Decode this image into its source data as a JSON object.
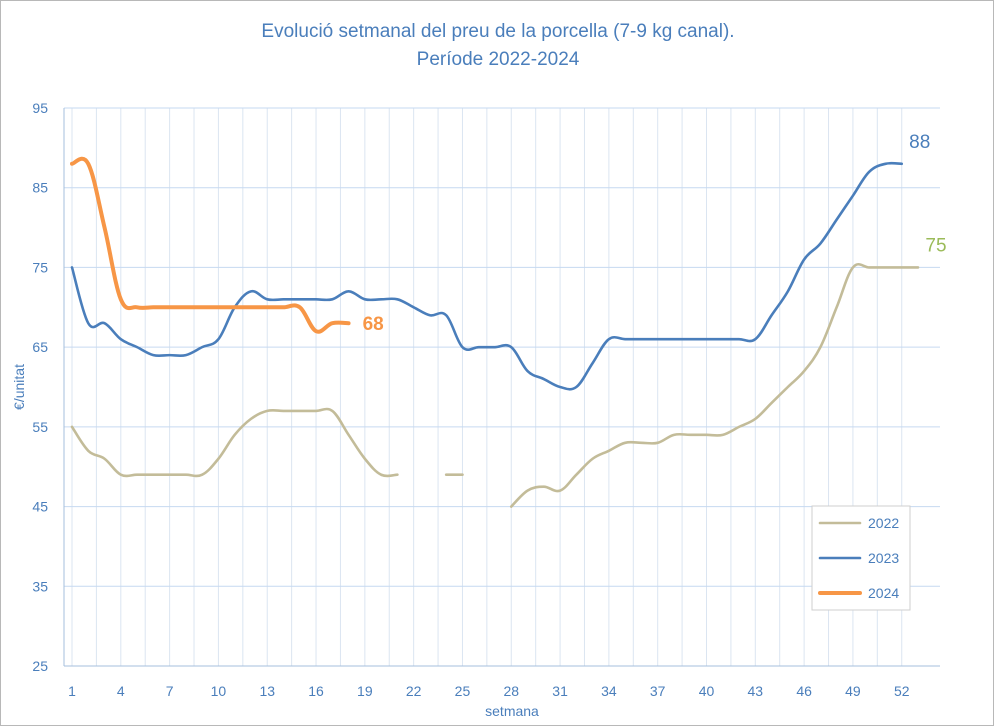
{
  "chart_data": {
    "type": "line",
    "title": "Evolució setmanal del preu de la porcella (7-9 kg canal).",
    "subtitle": "Període 2022-2024",
    "xlabel": "setmana",
    "ylabel": "€/unitat",
    "xlim": [
      1,
      53
    ],
    "ylim": [
      25,
      95
    ],
    "x_ticks": [
      1,
      4,
      7,
      10,
      13,
      16,
      19,
      22,
      25,
      28,
      31,
      34,
      37,
      40,
      43,
      46,
      49,
      52
    ],
    "y_ticks": [
      25,
      35,
      45,
      55,
      65,
      75,
      85,
      95
    ],
    "grid": true,
    "legend_position": "bottom-right",
    "series": [
      {
        "name": "2022",
        "color": "#c3bc99",
        "values": [
          [
            1,
            55
          ],
          [
            2,
            52
          ],
          [
            3,
            51
          ],
          [
            4,
            49
          ],
          [
            5,
            49
          ],
          [
            6,
            49
          ],
          [
            7,
            49
          ],
          [
            8,
            49
          ],
          [
            9,
            49
          ],
          [
            10,
            51
          ],
          [
            11,
            54
          ],
          [
            12,
            56
          ],
          [
            13,
            57
          ],
          [
            14,
            57
          ],
          [
            15,
            57
          ],
          [
            16,
            57
          ],
          [
            17,
            57
          ],
          [
            18,
            54
          ],
          [
            19,
            51
          ],
          [
            20,
            49
          ],
          [
            21,
            49
          ],
          [
            22,
            null
          ],
          [
            23,
            null
          ],
          [
            24,
            49
          ],
          [
            25,
            49
          ],
          [
            26,
            null
          ],
          [
            27,
            null
          ],
          [
            28,
            45
          ],
          [
            29,
            47
          ],
          [
            30,
            47.5
          ],
          [
            31,
            47
          ],
          [
            32,
            49
          ],
          [
            33,
            51
          ],
          [
            34,
            52
          ],
          [
            35,
            53
          ],
          [
            36,
            53
          ],
          [
            37,
            53
          ],
          [
            38,
            54
          ],
          [
            39,
            54
          ],
          [
            40,
            54
          ],
          [
            41,
            54
          ],
          [
            42,
            55
          ],
          [
            43,
            56
          ],
          [
            44,
            58
          ],
          [
            45,
            60
          ],
          [
            46,
            62
          ],
          [
            47,
            65
          ],
          [
            48,
            70
          ],
          [
            49,
            75
          ],
          [
            50,
            75
          ],
          [
            51,
            75
          ],
          [
            52,
            75
          ],
          [
            53,
            75
          ]
        ],
        "end_label": "75",
        "end_label_color": "#9bbb59"
      },
      {
        "name": "2023",
        "color": "#4a7ebb",
        "values": [
          [
            1,
            75
          ],
          [
            2,
            68
          ],
          [
            3,
            68
          ],
          [
            4,
            66
          ],
          [
            5,
            65
          ],
          [
            6,
            64
          ],
          [
            7,
            64
          ],
          [
            8,
            64
          ],
          [
            9,
            65
          ],
          [
            10,
            66
          ],
          [
            11,
            70
          ],
          [
            12,
            72
          ],
          [
            13,
            71
          ],
          [
            14,
            71
          ],
          [
            15,
            71
          ],
          [
            16,
            71
          ],
          [
            17,
            71
          ],
          [
            18,
            72
          ],
          [
            19,
            71
          ],
          [
            20,
            71
          ],
          [
            21,
            71
          ],
          [
            22,
            70
          ],
          [
            23,
            69
          ],
          [
            24,
            69
          ],
          [
            25,
            65
          ],
          [
            26,
            65
          ],
          [
            27,
            65
          ],
          [
            28,
            65
          ],
          [
            29,
            62
          ],
          [
            30,
            61
          ],
          [
            31,
            60
          ],
          [
            32,
            60
          ],
          [
            33,
            63
          ],
          [
            34,
            66
          ],
          [
            35,
            66
          ],
          [
            36,
            66
          ],
          [
            37,
            66
          ],
          [
            38,
            66
          ],
          [
            39,
            66
          ],
          [
            40,
            66
          ],
          [
            41,
            66
          ],
          [
            42,
            66
          ],
          [
            43,
            66
          ],
          [
            44,
            69
          ],
          [
            45,
            72
          ],
          [
            46,
            76
          ],
          [
            47,
            78
          ],
          [
            48,
            81
          ],
          [
            49,
            84
          ],
          [
            50,
            87
          ],
          [
            51,
            88
          ],
          [
            52,
            88
          ]
        ],
        "end_label": "88",
        "end_label_color": "#4a7ebb"
      },
      {
        "name": "2024",
        "color": "#f79646",
        "values": [
          [
            1,
            88
          ],
          [
            2,
            88
          ],
          [
            3,
            80
          ],
          [
            4,
            71
          ],
          [
            5,
            70
          ],
          [
            6,
            70
          ],
          [
            7,
            70
          ],
          [
            8,
            70
          ],
          [
            9,
            70
          ],
          [
            10,
            70
          ],
          [
            11,
            70
          ],
          [
            12,
            70
          ],
          [
            13,
            70
          ],
          [
            14,
            70
          ],
          [
            15,
            70
          ],
          [
            16,
            67
          ],
          [
            17,
            68
          ],
          [
            18,
            68
          ]
        ],
        "end_label": "68",
        "end_label_color": "#f79646"
      }
    ]
  }
}
